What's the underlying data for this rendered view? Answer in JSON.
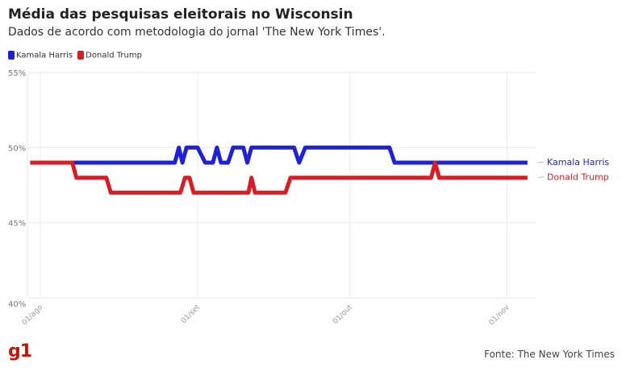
{
  "chart_data": {
    "type": "line",
    "title": "Média das pesquisas eleitorais no Wisconsin",
    "subtitle": "Dados de acordo com metodologia do jornal 'The New York Times'.",
    "xlabel": "",
    "ylabel": "",
    "x_unit": "days since 01/ago",
    "ylim": [
      40,
      55
    ],
    "y_ticks": [
      {
        "v": 55,
        "label": "55%"
      },
      {
        "v": 50,
        "label": "50%"
      },
      {
        "v": 45,
        "label": "45%"
      },
      {
        "v": 40,
        "label": "40%"
      }
    ],
    "x_ticks": [
      {
        "d": 0,
        "label": "01/ago"
      },
      {
        "d": 31,
        "label": "01/set"
      },
      {
        "d": 61,
        "label": "01/out"
      },
      {
        "d": 92,
        "label": "01/nov"
      }
    ],
    "xlim": [
      -2.5,
      97
    ],
    "series": [
      {
        "name": "Kamala Harris",
        "color": "#1f22d4",
        "points": [
          [
            -2,
            49
          ],
          [
            26.5,
            49
          ],
          [
            27.3,
            50
          ],
          [
            28,
            49
          ],
          [
            28.8,
            50
          ],
          [
            31,
            50
          ],
          [
            32.5,
            49
          ],
          [
            34,
            49
          ],
          [
            34.8,
            50
          ],
          [
            35.6,
            49
          ],
          [
            37,
            49
          ],
          [
            38,
            50
          ],
          [
            40,
            50
          ],
          [
            40.8,
            49
          ],
          [
            41.6,
            50
          ],
          [
            50,
            50
          ],
          [
            51,
            49
          ],
          [
            52.2,
            50
          ],
          [
            68.8,
            50
          ],
          [
            69.8,
            49
          ],
          [
            96,
            49
          ]
        ]
      },
      {
        "name": "Donald Trump",
        "color": "#d71d25",
        "points": [
          [
            -2,
            49
          ],
          [
            6.3,
            49
          ],
          [
            7.1,
            48
          ],
          [
            13,
            48
          ],
          [
            13.9,
            47
          ],
          [
            27.6,
            47
          ],
          [
            28.5,
            48
          ],
          [
            29.4,
            48
          ],
          [
            30.2,
            47
          ],
          [
            41,
            47
          ],
          [
            41.6,
            48
          ],
          [
            42.3,
            47
          ],
          [
            48.3,
            47
          ],
          [
            49.3,
            48
          ],
          [
            77,
            48
          ],
          [
            77.8,
            49
          ],
          [
            78.6,
            48
          ],
          [
            96,
            48
          ]
        ]
      }
    ]
  },
  "legend": [
    "Kamala Harris",
    "Donald Trump"
  ],
  "logo": "g1",
  "source": "Fonte: The New York Times"
}
